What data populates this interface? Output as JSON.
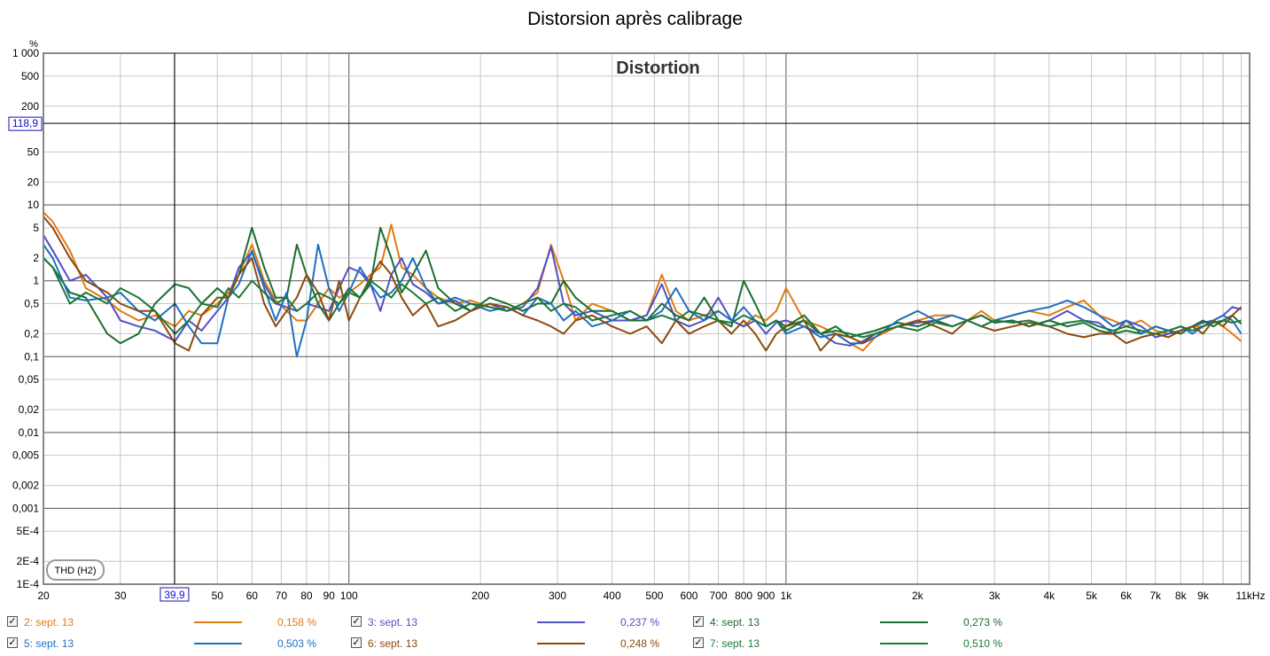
{
  "window": {
    "title": "Distorsion après calibrage"
  },
  "chart_data": {
    "type": "line",
    "title": "Distorsion après calibrage",
    "subtitle": "Distortion",
    "ylabel": "%",
    "xlabel": "",
    "x_scale": "log",
    "y_scale": "log",
    "xlim": [
      20,
      11500
    ],
    "ylim": [
      0.0001,
      1000
    ],
    "grid": true,
    "x_ticks": [
      {
        "v": 20,
        "t": "20"
      },
      {
        "v": 30,
        "t": "30"
      },
      {
        "v": 50,
        "t": "50"
      },
      {
        "v": 60,
        "t": "60"
      },
      {
        "v": 70,
        "t": "70"
      },
      {
        "v": 80,
        "t": "80"
      },
      {
        "v": 90,
        "t": "90"
      },
      {
        "v": 100,
        "t": "100"
      },
      {
        "v": 200,
        "t": "200"
      },
      {
        "v": 300,
        "t": "300"
      },
      {
        "v": 400,
        "t": "400"
      },
      {
        "v": 500,
        "t": "500"
      },
      {
        "v": 600,
        "t": "600"
      },
      {
        "v": 700,
        "t": "700"
      },
      {
        "v": 800,
        "t": "800"
      },
      {
        "v": 900,
        "t": "900"
      },
      {
        "v": 1000,
        "t": "1k"
      },
      {
        "v": 2000,
        "t": "2k"
      },
      {
        "v": 3000,
        "t": "3k"
      },
      {
        "v": 4000,
        "t": "4k"
      },
      {
        "v": 5000,
        "t": "5k"
      },
      {
        "v": 6000,
        "t": "6k"
      },
      {
        "v": 7000,
        "t": "7k"
      },
      {
        "v": 8000,
        "t": "8k"
      },
      {
        "v": 9000,
        "t": "9k"
      },
      {
        "v": 11000,
        "t": "11kHz"
      }
    ],
    "y_ticks": [
      {
        "v": 1000,
        "t": "1 000"
      },
      {
        "v": 500,
        "t": "500"
      },
      {
        "v": 200,
        "t": "200"
      },
      {
        "v": 50,
        "t": "50"
      },
      {
        "v": 20,
        "t": "20"
      },
      {
        "v": 10,
        "t": "10"
      },
      {
        "v": 5,
        "t": "5"
      },
      {
        "v": 2,
        "t": "2"
      },
      {
        "v": 1,
        "t": "1"
      },
      {
        "v": 0.5,
        "t": "0,5"
      },
      {
        "v": 0.2,
        "t": "0,2"
      },
      {
        "v": 0.1,
        "t": "0,1"
      },
      {
        "v": 0.05,
        "t": "0,05"
      },
      {
        "v": 0.02,
        "t": "0,02"
      },
      {
        "v": 0.01,
        "t": "0,01"
      },
      {
        "v": 0.005,
        "t": "0,005"
      },
      {
        "v": 0.002,
        "t": "0,002"
      },
      {
        "v": 0.001,
        "t": "0,001"
      },
      {
        "v": 0.0005,
        "t": "5E-4"
      },
      {
        "v": 0.0002,
        "t": "2E-4"
      },
      {
        "v": 0.0001,
        "t": "1E-4"
      }
    ],
    "cursor": {
      "x": 39.9,
      "y": 118.9,
      "x_label": "39,9",
      "y_label": "118,9"
    },
    "annotation": "THD (H2)",
    "series": [
      {
        "name": "2: sept. 13",
        "color": "#e07b10",
        "value_label": "0,158 %",
        "x": [
          20,
          21,
          23,
          25,
          28,
          30,
          33,
          36,
          40,
          43,
          46,
          50,
          53,
          56,
          60,
          64,
          68,
          72,
          76,
          80,
          85,
          90,
          95,
          100,
          106,
          112,
          118,
          125,
          132,
          140,
          150,
          160,
          175,
          190,
          210,
          230,
          250,
          270,
          290,
          310,
          330,
          360,
          400,
          440,
          480,
          520,
          560,
          600,
          650,
          700,
          750,
          800,
          850,
          900,
          950,
          1000,
          1100,
          1200,
          1300,
          1400,
          1500,
          1600,
          1800,
          2000,
          2200,
          2400,
          2600,
          2800,
          3000,
          3300,
          3600,
          4000,
          4400,
          4800,
          5200,
          5600,
          6000,
          6500,
          7000,
          7500,
          8000,
          8500,
          9000,
          9500,
          10000,
          10500,
          11000
        ],
        "y": [
          8,
          6,
          2.5,
          0.8,
          0.55,
          0.4,
          0.3,
          0.35,
          0.25,
          0.4,
          0.35,
          0.5,
          0.7,
          1.2,
          3,
          1,
          0.55,
          0.4,
          0.3,
          0.3,
          0.5,
          0.8,
          0.6,
          0.7,
          0.9,
          1.2,
          1.5,
          5.5,
          1.5,
          1.2,
          0.8,
          0.6,
          0.5,
          0.55,
          0.45,
          0.4,
          0.5,
          0.7,
          3,
          1,
          0.3,
          0.5,
          0.4,
          0.3,
          0.35,
          1.2,
          0.4,
          0.3,
          0.35,
          0.4,
          0.3,
          0.25,
          0.35,
          0.3,
          0.4,
          0.8,
          0.3,
          0.25,
          0.2,
          0.15,
          0.12,
          0.18,
          0.25,
          0.3,
          0.35,
          0.35,
          0.3,
          0.4,
          0.3,
          0.35,
          0.4,
          0.35,
          0.45,
          0.55,
          0.35,
          0.3,
          0.25,
          0.3,
          0.22,
          0.2,
          0.22,
          0.25,
          0.25,
          0.3,
          0.25,
          0.2,
          0.16
        ]
      },
      {
        "name": "3: sept. 13",
        "color": "#5050c8",
        "value_label": "0,237 %",
        "x": [
          20,
          21,
          23,
          25,
          28,
          30,
          33,
          36,
          40,
          43,
          46,
          50,
          53,
          56,
          60,
          64,
          68,
          72,
          76,
          80,
          85,
          90,
          95,
          100,
          106,
          112,
          118,
          125,
          132,
          140,
          150,
          160,
          175,
          190,
          210,
          230,
          250,
          270,
          290,
          310,
          330,
          360,
          400,
          440,
          480,
          520,
          560,
          600,
          650,
          700,
          750,
          800,
          850,
          900,
          950,
          1000,
          1100,
          1200,
          1300,
          1400,
          1500,
          1600,
          1800,
          2000,
          2200,
          2400,
          2600,
          2800,
          3000,
          3300,
          3600,
          4000,
          4400,
          4800,
          5200,
          5600,
          6000,
          6500,
          7000,
          7500,
          8000,
          8500,
          9000,
          9500,
          10000,
          10500,
          11000
        ],
        "y": [
          4,
          2.5,
          1,
          1.2,
          0.6,
          0.3,
          0.25,
          0.22,
          0.16,
          0.3,
          0.22,
          0.4,
          0.6,
          1.5,
          2.4,
          0.9,
          0.5,
          0.45,
          0.4,
          0.5,
          0.45,
          0.4,
          0.8,
          1.5,
          1.3,
          0.9,
          0.4,
          1.2,
          2,
          0.9,
          0.7,
          0.5,
          0.55,
          0.4,
          0.5,
          0.4,
          0.45,
          0.8,
          2.8,
          0.5,
          0.35,
          0.4,
          0.3,
          0.3,
          0.35,
          0.9,
          0.3,
          0.25,
          0.3,
          0.6,
          0.3,
          0.25,
          0.3,
          0.2,
          0.28,
          0.3,
          0.25,
          0.2,
          0.15,
          0.14,
          0.16,
          0.2,
          0.25,
          0.28,
          0.3,
          0.25,
          0.3,
          0.35,
          0.28,
          0.3,
          0.25,
          0.3,
          0.4,
          0.3,
          0.28,
          0.2,
          0.3,
          0.25,
          0.18,
          0.2,
          0.22,
          0.25,
          0.28,
          0.3,
          0.35,
          0.45,
          0.42
        ]
      },
      {
        "name": "4: sept. 13",
        "color": "#1a6e2e",
        "value_label": "0,273 %",
        "x": [
          20,
          21,
          23,
          25,
          28,
          30,
          33,
          36,
          40,
          43,
          46,
          50,
          53,
          56,
          60,
          64,
          68,
          72,
          76,
          80,
          85,
          90,
          95,
          100,
          106,
          112,
          118,
          125,
          132,
          140,
          150,
          160,
          175,
          190,
          210,
          230,
          250,
          270,
          290,
          310,
          330,
          360,
          400,
          440,
          480,
          520,
          560,
          600,
          650,
          700,
          750,
          800,
          850,
          900,
          950,
          1000,
          1100,
          1200,
          1300,
          1400,
          1500,
          1600,
          1800,
          2000,
          2200,
          2400,
          2600,
          2800,
          3000,
          3300,
          3600,
          4000,
          4400,
          4800,
          5200,
          5600,
          6000,
          6500,
          7000,
          7500,
          8000,
          8500,
          9000,
          9500,
          10000,
          10500,
          11000
        ],
        "y": [
          2,
          1.5,
          0.7,
          0.6,
          0.2,
          0.15,
          0.2,
          0.5,
          0.9,
          0.8,
          0.5,
          0.8,
          0.6,
          1.2,
          5,
          1.5,
          0.6,
          0.6,
          3,
          1.2,
          0.5,
          0.3,
          0.5,
          0.8,
          0.6,
          0.9,
          5,
          2,
          0.7,
          1.2,
          2.5,
          0.8,
          0.5,
          0.4,
          0.6,
          0.5,
          0.4,
          0.5,
          0.5,
          1,
          0.6,
          0.4,
          0.4,
          0.3,
          0.3,
          0.5,
          0.35,
          0.3,
          0.6,
          0.3,
          0.25,
          1,
          0.5,
          0.25,
          0.3,
          0.25,
          0.35,
          0.2,
          0.25,
          0.18,
          0.2,
          0.22,
          0.28,
          0.25,
          0.3,
          0.25,
          0.3,
          0.35,
          0.28,
          0.3,
          0.25,
          0.3,
          0.25,
          0.28,
          0.22,
          0.2,
          0.22,
          0.2,
          0.25,
          0.22,
          0.2,
          0.25,
          0.3,
          0.25,
          0.3,
          0.35,
          0.27
        ]
      },
      {
        "name": "5: sept. 13",
        "color": "#1e6fbf",
        "value_label": "0,503 %",
        "x": [
          20,
          21,
          23,
          25,
          28,
          30,
          33,
          36,
          40,
          43,
          46,
          50,
          53,
          56,
          60,
          64,
          68,
          72,
          76,
          80,
          85,
          90,
          95,
          100,
          106,
          112,
          118,
          125,
          132,
          140,
          150,
          160,
          175,
          190,
          210,
          230,
          250,
          270,
          290,
          310,
          330,
          360,
          400,
          440,
          480,
          520,
          560,
          600,
          650,
          700,
          750,
          800,
          850,
          900,
          950,
          1000,
          1100,
          1200,
          1300,
          1400,
          1500,
          1600,
          1800,
          2000,
          2200,
          2400,
          2600,
          2800,
          3000,
          3300,
          3600,
          4000,
          4400,
          4800,
          5200,
          5600,
          6000,
          6500,
          7000,
          7500,
          8000,
          8500,
          9000,
          9500,
          10000,
          10500,
          11000
        ],
        "y": [
          3,
          2,
          0.6,
          0.55,
          0.6,
          0.7,
          0.4,
          0.3,
          0.5,
          0.25,
          0.15,
          0.15,
          0.6,
          0.9,
          2.5,
          0.8,
          0.3,
          0.7,
          0.1,
          0.3,
          3,
          0.8,
          0.4,
          0.7,
          1.5,
          0.9,
          0.6,
          0.7,
          1,
          2,
          0.8,
          0.5,
          0.6,
          0.5,
          0.4,
          0.45,
          0.35,
          0.6,
          0.5,
          0.3,
          0.4,
          0.25,
          0.3,
          0.4,
          0.3,
          0.4,
          0.8,
          0.4,
          0.3,
          0.4,
          0.3,
          0.45,
          0.3,
          0.25,
          0.3,
          0.2,
          0.25,
          0.18,
          0.2,
          0.15,
          0.15,
          0.18,
          0.3,
          0.4,
          0.3,
          0.35,
          0.3,
          0.25,
          0.3,
          0.35,
          0.4,
          0.45,
          0.55,
          0.45,
          0.35,
          0.25,
          0.3,
          0.2,
          0.25,
          0.22,
          0.25,
          0.2,
          0.25,
          0.3,
          0.35,
          0.3,
          0.2
        ]
      },
      {
        "name": "6: sept. 13",
        "color": "#8b4a0f",
        "value_label": "0,248 %",
        "x": [
          20,
          21,
          23,
          25,
          28,
          30,
          33,
          36,
          40,
          43,
          46,
          50,
          53,
          56,
          60,
          64,
          68,
          72,
          76,
          80,
          85,
          90,
          95,
          100,
          106,
          112,
          118,
          125,
          132,
          140,
          150,
          160,
          175,
          190,
          210,
          230,
          250,
          270,
          290,
          310,
          330,
          360,
          400,
          440,
          480,
          520,
          560,
          600,
          650,
          700,
          750,
          800,
          850,
          900,
          950,
          1000,
          1100,
          1200,
          1300,
          1400,
          1500,
          1600,
          1800,
          2000,
          2200,
          2400,
          2600,
          2800,
          3000,
          3300,
          3600,
          4000,
          4400,
          4800,
          5200,
          5600,
          6000,
          6500,
          7000,
          7500,
          8000,
          8500,
          9000,
          9500,
          10000,
          10500,
          11000
        ],
        "y": [
          7,
          5,
          2,
          1,
          0.7,
          0.5,
          0.4,
          0.4,
          0.15,
          0.12,
          0.35,
          0.6,
          0.6,
          1.2,
          2,
          0.5,
          0.25,
          0.4,
          0.6,
          1.2,
          0.7,
          0.3,
          1,
          0.3,
          0.6,
          1.1,
          1.8,
          1.2,
          0.6,
          0.35,
          0.5,
          0.25,
          0.3,
          0.4,
          0.5,
          0.45,
          0.35,
          0.3,
          0.25,
          0.2,
          0.3,
          0.35,
          0.25,
          0.2,
          0.25,
          0.15,
          0.3,
          0.2,
          0.25,
          0.3,
          0.2,
          0.3,
          0.2,
          0.12,
          0.2,
          0.25,
          0.3,
          0.12,
          0.2,
          0.18,
          0.15,
          0.2,
          0.25,
          0.3,
          0.25,
          0.2,
          0.3,
          0.25,
          0.22,
          0.25,
          0.28,
          0.25,
          0.2,
          0.18,
          0.2,
          0.2,
          0.15,
          0.18,
          0.2,
          0.18,
          0.22,
          0.25,
          0.2,
          0.3,
          0.25,
          0.35,
          0.45
        ]
      },
      {
        "name": "7: sept. 13",
        "color": "#1b7a3a",
        "value_label": "0,510 %",
        "x": [
          20,
          21,
          23,
          25,
          28,
          30,
          33,
          36,
          40,
          43,
          46,
          50,
          53,
          56,
          60,
          64,
          68,
          72,
          76,
          80,
          85,
          90,
          95,
          100,
          106,
          112,
          118,
          125,
          132,
          140,
          150,
          160,
          175,
          190,
          210,
          230,
          250,
          270,
          290,
          310,
          330,
          360,
          400,
          440,
          480,
          520,
          560,
          600,
          650,
          700,
          750,
          800,
          850,
          900,
          950,
          1000,
          1100,
          1200,
          1300,
          1400,
          1500,
          1600,
          1800,
          2000,
          2200,
          2400,
          2600,
          2800,
          3000,
          3300,
          3600,
          4000,
          4400,
          4800,
          5200,
          5600,
          6000,
          6500,
          7000,
          7500,
          8000,
          8500,
          9000,
          9500,
          10000,
          10500,
          11000
        ],
        "y": [
          2,
          1.5,
          0.5,
          0.7,
          0.5,
          0.8,
          0.6,
          0.4,
          0.2,
          0.3,
          0.5,
          0.45,
          0.8,
          0.6,
          1,
          0.7,
          0.5,
          0.6,
          0.4,
          0.5,
          0.7,
          0.6,
          0.5,
          0.7,
          0.6,
          1,
          0.8,
          0.6,
          0.9,
          0.7,
          0.5,
          0.6,
          0.4,
          0.5,
          0.45,
          0.4,
          0.5,
          0.6,
          0.4,
          0.5,
          0.45,
          0.3,
          0.35,
          0.4,
          0.3,
          0.35,
          0.3,
          0.4,
          0.35,
          0.3,
          0.28,
          0.35,
          0.3,
          0.25,
          0.3,
          0.22,
          0.3,
          0.2,
          0.22,
          0.2,
          0.18,
          0.2,
          0.25,
          0.22,
          0.28,
          0.25,
          0.3,
          0.25,
          0.3,
          0.28,
          0.3,
          0.25,
          0.28,
          0.3,
          0.25,
          0.22,
          0.25,
          0.22,
          0.2,
          0.22,
          0.25,
          0.22,
          0.25,
          0.28,
          0.3,
          0.28,
          0.3
        ]
      }
    ]
  }
}
